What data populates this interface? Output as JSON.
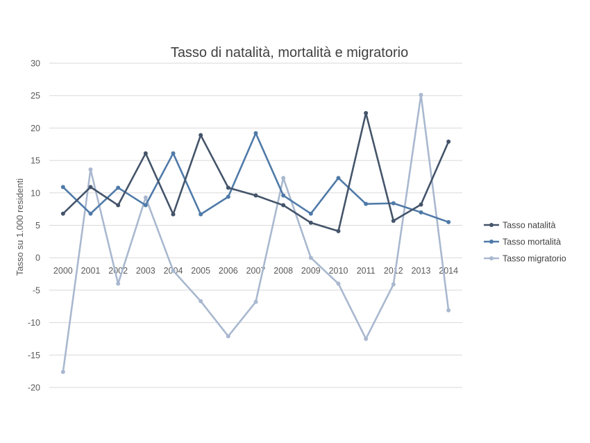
{
  "chart_data": {
    "type": "line",
    "title": "Tasso di natalità, mortalità e migratorio",
    "xlabel": "",
    "ylabel": "Tasso su 1.000 residenti",
    "ylim": [
      -20,
      30
    ],
    "yticks": [
      30,
      25,
      20,
      15,
      10,
      5,
      0,
      -5,
      -10,
      -15,
      -20
    ],
    "grid": true,
    "legend_position": "right",
    "categories": [
      "2000",
      "2001",
      "2002",
      "2003",
      "2004",
      "2005",
      "2006",
      "2007",
      "2008",
      "2009",
      "2010",
      "2011",
      "2012",
      "2013",
      "2014"
    ],
    "series": [
      {
        "name": "Tasso natalità",
        "color": "#44546a",
        "values": [
          6.8,
          10.9,
          8.1,
          16.1,
          6.7,
          18.9,
          10.8,
          9.6,
          8.1,
          5.4,
          4.1,
          22.3,
          5.7,
          8.2,
          17.9
        ]
      },
      {
        "name": "Tasso mortalità",
        "color": "#4f7aa8",
        "values": [
          10.9,
          6.8,
          10.8,
          8.1,
          16.1,
          6.7,
          9.4,
          19.2,
          9.6,
          6.8,
          12.3,
          8.3,
          8.4,
          7.0,
          5.5
        ]
      },
      {
        "name": "Tasso migratorio",
        "color": "#a9b8cf",
        "values": [
          -17.6,
          13.6,
          -4.0,
          9.3,
          -2.0,
          -6.7,
          -12.1,
          -6.8,
          12.3,
          0.0,
          -4.0,
          -12.5,
          -4.1,
          25.1,
          -8.1
        ]
      }
    ]
  }
}
